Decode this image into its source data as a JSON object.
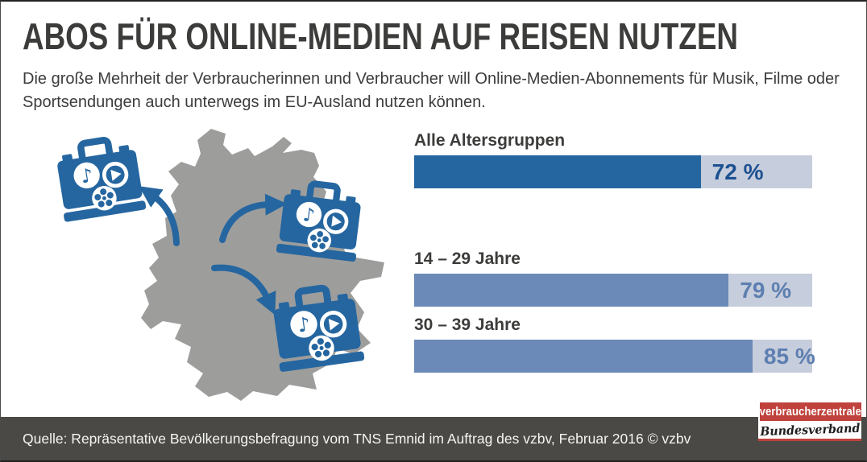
{
  "header": {
    "title": "ABOS FÜR ONLINE-MEDIEN AUF REISEN NUTZEN",
    "subtitle_line1": "Die große Mehrheit der Verbraucherinnen und Verbraucher will Online-Medien-Abonnements für Musik, Filme oder",
    "subtitle_line2": "Sportsendungen auch unterwegs im EU-Ausland nutzen können."
  },
  "chart_data": {
    "type": "bar",
    "orientation": "horizontal",
    "unit": "percent",
    "xlim": [
      0,
      100
    ],
    "grid": false,
    "legend": false,
    "categories": [
      "Alle Altersgruppen",
      "14 – 29 Jahre",
      "30 – 39 Jahre"
    ],
    "values": [
      72,
      79,
      85
    ],
    "rows": [
      {
        "label": "Alle Altersgruppen",
        "value": 72,
        "value_label": "72 %"
      },
      {
        "label": "14 – 29 Jahre",
        "value": 79,
        "value_label": "79 %"
      },
      {
        "label": "30 – 39 Jahre",
        "value": 85,
        "value_label": "85 %"
      }
    ]
  },
  "illustration": {
    "map": "germany-map-silhouette",
    "icons": [
      "media-suitcase-icon",
      "music-note-icon",
      "play-icon",
      "film-reel-icon",
      "travel-arrow-icon"
    ]
  },
  "footer": {
    "source": "Quelle: Repräsentative Bevölkerungsbefragung vom TNS Emnid im Auftrag des vzbv, Februar 2016 © vzbv"
  },
  "logo": {
    "line1": "verbraucherzentrale",
    "line2": "Bundesverband"
  },
  "colors": {
    "title_gray": "#3c3c3b",
    "bar_dark_blue": "#2566a0",
    "bar_medium_blue": "#6b8ab8",
    "bar_track": "#c6cddc",
    "value_dark_blue": "#1d5191",
    "value_medium_blue": "#5d7fb0",
    "map_gray": "#9d9d9c",
    "icon_blue": "#2566a0",
    "footer_bg": "#4a4946",
    "logo_red": "#c0423c"
  }
}
